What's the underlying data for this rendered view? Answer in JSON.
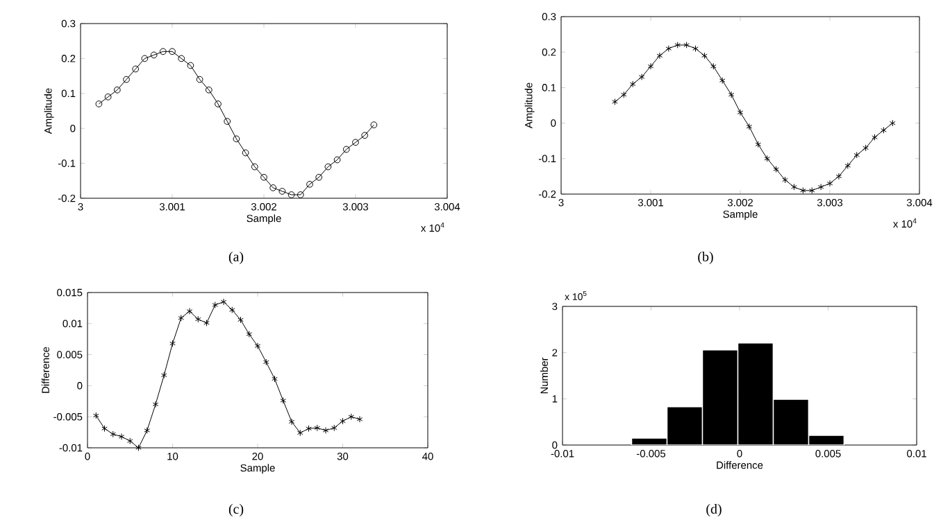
{
  "chart_data": [
    {
      "type": "line",
      "xlabel": "Sample",
      "ylabel": "Amplitude",
      "annotations": [
        "x 10$^{4}$",
        "(a)"
      ],
      "marker": "circle",
      "x": [
        3.0002,
        3.0003,
        3.0004,
        3.0005,
        3.0006,
        3.0007,
        3.0008,
        3.0009,
        3.001,
        3.0011,
        3.0012,
        3.0013,
        3.0014,
        3.0015,
        3.0016,
        3.0017,
        3.0018,
        3.0019,
        3.002,
        3.0021,
        3.0022,
        3.0023,
        3.0024,
        3.0025,
        3.0026,
        3.0027,
        3.0028,
        3.0029,
        3.003,
        3.0031,
        3.0032
      ],
      "series": [
        {
          "color": "#000000",
          "values": [
            0.07,
            0.09,
            0.11,
            0.14,
            0.17,
            0.2,
            0.21,
            0.22,
            0.22,
            0.2,
            0.18,
            0.14,
            0.11,
            0.07,
            0.02,
            -0.03,
            -0.07,
            -0.11,
            -0.14,
            -0.17,
            -0.18,
            -0.19,
            -0.19,
            -0.16,
            -0.14,
            -0.11,
            -0.09,
            -0.06,
            -0.04,
            -0.02,
            0.01
          ]
        }
      ],
      "xlim": [
        3,
        3.004
      ],
      "xticks": [
        3,
        3.001,
        3.002,
        3.003,
        3.004
      ],
      "ylim": [
        -0.2,
        0.3
      ],
      "yticks": [
        -0.2,
        -0.1,
        0,
        0.1,
        0.2,
        0.3
      ]
    },
    {
      "type": "line",
      "xlabel": "Sample",
      "ylabel": "Amplitude",
      "annotations": [
        "x 10$^{4}$",
        "(b)"
      ],
      "marker": "cross",
      "x": [
        3.0006,
        3.0007,
        3.0008,
        3.0009,
        3.001,
        3.0011,
        3.0012,
        3.0013,
        3.0014,
        3.0015,
        3.0016,
        3.0017,
        3.0018,
        3.0019,
        3.002,
        3.0021,
        3.0022,
        3.0023,
        3.0024,
        3.0025,
        3.0026,
        3.0027,
        3.0028,
        3.0029,
        3.003,
        3.0031,
        3.0032,
        3.0033,
        3.0034,
        3.0035,
        3.0036,
        3.0037
      ],
      "series": [
        {
          "color": "#000000",
          "values": [
            0.06,
            0.08,
            0.11,
            0.13,
            0.16,
            0.19,
            0.21,
            0.22,
            0.22,
            0.21,
            0.19,
            0.16,
            0.12,
            0.08,
            0.03,
            -0.01,
            -0.06,
            -0.1,
            -0.13,
            -0.16,
            -0.18,
            -0.19,
            -0.19,
            -0.18,
            -0.17,
            -0.15,
            -0.12,
            -0.09,
            -0.07,
            -0.04,
            -0.02,
            0.0
          ]
        }
      ],
      "xlim": [
        3,
        3.004
      ],
      "xticks": [
        3,
        3.001,
        3.002,
        3.003,
        3.004
      ],
      "ylim": [
        -0.2,
        0.3
      ],
      "yticks": [
        -0.2,
        -0.1,
        0,
        0.1,
        0.2,
        0.3
      ]
    },
    {
      "type": "line",
      "xlabel": "Sample",
      "ylabel": "Difference",
      "annotations": [
        "(c)"
      ],
      "marker": "cross",
      "x": [
        1,
        2,
        3,
        4,
        5,
        6,
        7,
        8,
        9,
        10,
        11,
        12,
        13,
        14,
        15,
        16,
        17,
        18,
        19,
        20,
        21,
        22,
        23,
        24,
        25,
        26,
        27,
        28,
        29,
        30,
        31,
        32
      ],
      "series": [
        {
          "color": "#000000",
          "values": [
            -0.0048,
            -0.0069,
            -0.0078,
            -0.0082,
            -0.0089,
            -0.01,
            -0.0072,
            -0.003,
            0.0017,
            0.0068,
            0.0109,
            0.012,
            0.0107,
            0.0101,
            0.013,
            0.0135,
            0.0122,
            0.0106,
            0.0083,
            0.0064,
            0.0038,
            0.0011,
            -0.0024,
            -0.0058,
            -0.0076,
            -0.0069,
            -0.0068,
            -0.0072,
            -0.0068,
            -0.0057,
            -0.005,
            -0.0054
          ]
        }
      ],
      "xlim": [
        0,
        40
      ],
      "xticks": [
        0,
        10,
        20,
        30,
        40
      ],
      "ylim": [
        -0.01,
        0.015
      ],
      "yticks": [
        -0.01,
        -0.005,
        0,
        0.005,
        0.01,
        0.015
      ]
    },
    {
      "type": "histogram",
      "xlabel": "Difference",
      "ylabel": "Number",
      "annotations": [
        "x 10$^{5}$",
        "(d)"
      ],
      "color": "#000000",
      "bins": [
        -0.0061,
        -0.0041,
        -0.0021,
        -0.0001,
        0.0019,
        0.0039,
        0.0059
      ],
      "values": [
        0.15,
        0.83,
        2.06,
        2.21,
        0.99,
        0.21
      ],
      "xlim": [
        -0.01,
        0.01
      ],
      "xticks": [
        -0.01,
        -0.005,
        0,
        0.005,
        0.01
      ],
      "ylim": [
        0,
        3
      ],
      "yticks": [
        0,
        1,
        2,
        3
      ]
    }
  ]
}
